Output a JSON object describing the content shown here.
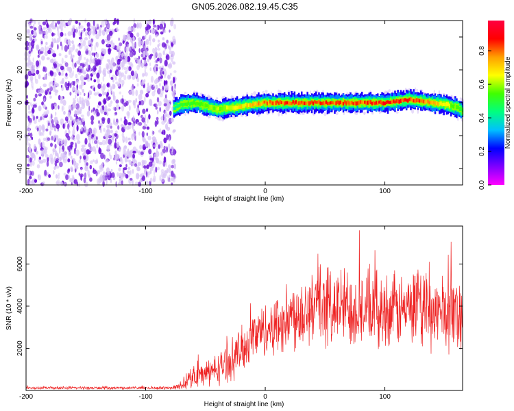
{
  "title": "GN05.2026.082.19.45.C35",
  "colors": {
    "background": "#ffffff",
    "snr_line": "#ee2222",
    "noise_purple": "#6a0fd8",
    "noise_light": "#d8c4f6",
    "axis": "#000000"
  },
  "colorbar": {
    "label": "Normalized spectral amplitude",
    "range": [
      0.0,
      0.98
    ],
    "ticks": [
      {
        "value": 0.0,
        "label": "0.0"
      },
      {
        "value": 0.2,
        "label": "0.2"
      },
      {
        "value": 0.4,
        "label": "0.4"
      },
      {
        "value": 0.6,
        "label": "0.6"
      },
      {
        "value": 0.8,
        "label": "0.8"
      }
    ],
    "stops": [
      "#ff00ff",
      "#8000ff",
      "#0000ff",
      "#00c0ff",
      "#00ff80",
      "#40ff00",
      "#ffff00",
      "#ffa000",
      "#ff0000",
      "#ff0040"
    ]
  },
  "chart_data": [
    {
      "id": "spectrogram",
      "type": "heatmap",
      "xlabel": "Height of straight line (km)",
      "ylabel": "Frequency (Hz)",
      "xlim": [
        -200,
        165
      ],
      "ylim": [
        -50,
        50
      ],
      "xticks": [
        {
          "value": -200,
          "label": "-200"
        },
        {
          "value": -100,
          "label": "-100"
        },
        {
          "value": 0,
          "label": "0"
        },
        {
          "value": 100,
          "label": "100"
        }
      ],
      "yticks": [
        {
          "value": -40,
          "label": "-40"
        },
        {
          "value": -20,
          "label": "-20"
        },
        {
          "value": 0,
          "label": "0"
        },
        {
          "value": 20,
          "label": "20"
        },
        {
          "value": 40,
          "label": "40"
        }
      ],
      "noise_region_x": [
        -200,
        -75
      ],
      "ridge": {
        "x": [
          -77,
          -70,
          -60,
          -50,
          -40,
          -30,
          -20,
          -10,
          0,
          10,
          20,
          40,
          60,
          80,
          100,
          110,
          120,
          130,
          140,
          150,
          160,
          165
        ],
        "freq": [
          -3.5,
          -1,
          0,
          -2,
          -4,
          -3,
          -2,
          -1,
          0,
          0,
          0,
          0,
          0,
          0,
          0,
          1,
          2,
          1,
          0,
          -1,
          -3,
          -5
        ],
        "amplitude": [
          0.45,
          0.55,
          0.6,
          0.6,
          0.65,
          0.7,
          0.75,
          0.8,
          0.85,
          0.88,
          0.9,
          0.92,
          0.9,
          0.9,
          0.92,
          0.95,
          0.9,
          0.88,
          0.8,
          0.7,
          0.6,
          0.5
        ]
      }
    },
    {
      "id": "snr",
      "type": "line",
      "xlabel": "Height of straight line (km)",
      "ylabel": "SNR (10 * v/v)",
      "xlim": [
        -200,
        165
      ],
      "ylim": [
        0,
        7800
      ],
      "xticks": [
        {
          "value": -200,
          "label": "-200"
        },
        {
          "value": -100,
          "label": "-100"
        },
        {
          "value": 0,
          "label": "0"
        },
        {
          "value": 100,
          "label": "100"
        }
      ],
      "yticks": [
        {
          "value": 2000,
          "label": "2000"
        },
        {
          "value": 4000,
          "label": "4000"
        },
        {
          "value": 6000,
          "label": "6000"
        }
      ],
      "envelope": {
        "x": [
          -200,
          -80,
          -70,
          -60,
          -50,
          -40,
          -30,
          -20,
          -10,
          0,
          10,
          20,
          30,
          40,
          60,
          80,
          100,
          120,
          140,
          160,
          165
        ],
        "mean": [
          120,
          120,
          200,
          700,
          800,
          1000,
          1400,
          1900,
          2600,
          2900,
          3100,
          3500,
          3800,
          4000,
          4000,
          3900,
          3800,
          3800,
          3700,
          3700,
          3600
        ],
        "spread": [
          80,
          80,
          200,
          700,
          700,
          900,
          1100,
          1300,
          1400,
          1500,
          1700,
          1900,
          2200,
          2300,
          2300,
          2200,
          2100,
          2100,
          2100,
          2200,
          2200
        ]
      }
    }
  ]
}
